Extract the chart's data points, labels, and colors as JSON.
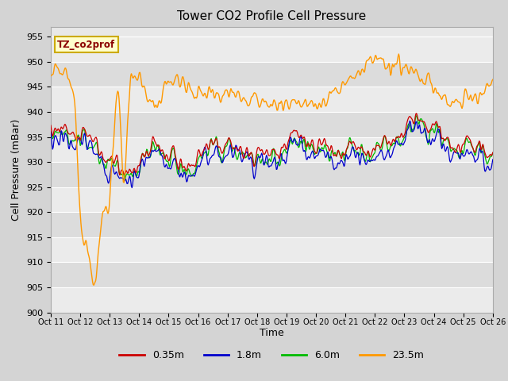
{
  "title": "Tower CO2 Profile Cell Pressure",
  "xlabel": "Time",
  "ylabel": "Cell Pressure (mBar)",
  "ylim": [
    900,
    957
  ],
  "yticks": [
    900,
    905,
    910,
    915,
    920,
    925,
    930,
    935,
    940,
    945,
    950,
    955
  ],
  "n_points": 720,
  "colors": {
    "0.35m": "#cc0000",
    "1.8m": "#0000cc",
    "6.0m": "#00bb00",
    "23.5m": "#ff9900"
  },
  "legend_labels": [
    "0.35m",
    "1.8m",
    "6.0m",
    "23.5m"
  ],
  "annotation_text": "TZ_co2prof",
  "annotation_color": "#8b0000",
  "annotation_bg": "#ffffcc",
  "annotation_border": "#ccaa00",
  "fig_bg": "#d4d4d4",
  "plot_bg": "#e8e8e8",
  "band_light": "#ebebeb",
  "band_dark": "#dcdcdc",
  "grid_color": "#ffffff",
  "title_fontsize": 11,
  "label_fontsize": 9,
  "tick_fontsize": 8
}
